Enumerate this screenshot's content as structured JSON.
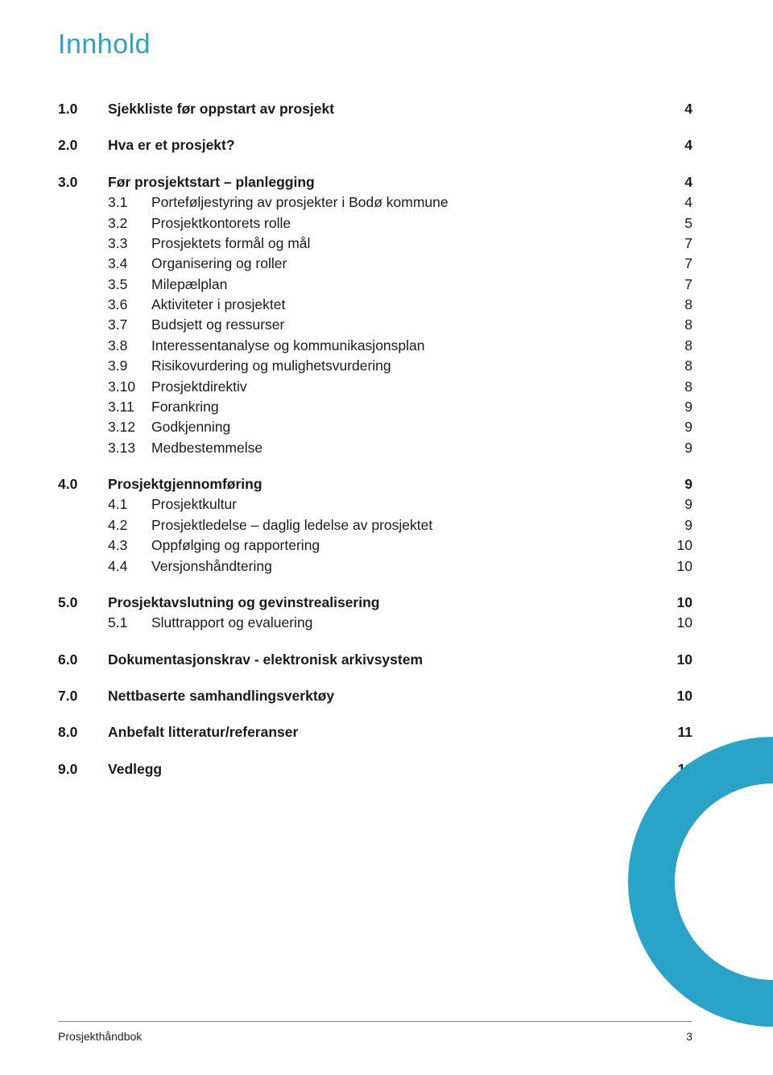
{
  "colors": {
    "title": "#2aa3c8",
    "text": "#1a1a1a",
    "rule": "#8a8a8a",
    "arc": "#2aa3c8",
    "background": "#ffffff"
  },
  "typography": {
    "title_fontsize": 34,
    "body_fontsize": 17.5,
    "footer_fontsize": 14,
    "body_lineheight": 1.45
  },
  "title": "Innhold",
  "sections": [
    {
      "num": "1.0",
      "label": "Sjekkliste før oppstart av prosjekt",
      "page": "4",
      "bold": true,
      "items": []
    },
    {
      "num": "2.0",
      "label": "Hva er et prosjekt?",
      "page": "4",
      "bold": true,
      "items": []
    },
    {
      "num": "3.0",
      "label": "Før prosjektstart – planlegging",
      "page": "4",
      "bold": true,
      "items": [
        {
          "num": "3.1",
          "label": "Porteføljestyring av prosjekter i Bodø kommune",
          "page": "4"
        },
        {
          "num": "3.2",
          "label": "Prosjektkontorets rolle",
          "page": "5"
        },
        {
          "num": "3.3",
          "label": "Prosjektets formål og mål",
          "page": "7"
        },
        {
          "num": "3.4",
          "label": "Organisering og roller",
          "page": "7"
        },
        {
          "num": "3.5",
          "label": "Milepælplan",
          "page": "7"
        },
        {
          "num": "3.6",
          "label": "Aktiviteter i prosjektet",
          "page": "8"
        },
        {
          "num": "3.7",
          "label": "Budsjett og ressurser",
          "page": "8"
        },
        {
          "num": "3.8",
          "label": "Interessentanalyse og kommunikasjonsplan",
          "page": "8"
        },
        {
          "num": "3.9",
          "label": "Risikovurdering og mulighetsvurdering",
          "page": "8"
        },
        {
          "num": "3.10",
          "label": "Prosjektdirektiv",
          "page": "8"
        },
        {
          "num": "3.11",
          "label": "Forankring",
          "page": "9"
        },
        {
          "num": "3.12",
          "label": "Godkjenning",
          "page": "9"
        },
        {
          "num": "3.13",
          "label": "Medbestemmelse",
          "page": "9"
        }
      ]
    },
    {
      "num": "4.0",
      "label": "Prosjektgjennomføring",
      "page": "9",
      "bold": true,
      "items": [
        {
          "num": "4.1",
          "label": "Prosjektkultur",
          "page": "9"
        },
        {
          "num": "4.2",
          "label": "Prosjektledelse – daglig ledelse av prosjektet",
          "page": "9"
        },
        {
          "num": "4.3",
          "label": "Oppfølging og rapportering",
          "page": "10"
        },
        {
          "num": "4.4",
          "label": "Versjonshåndtering",
          "page": "10"
        }
      ]
    },
    {
      "num": "5.0",
      "label": "Prosjektavslutning og gevinstrealisering",
      "page": "10",
      "bold": true,
      "items": [
        {
          "num": "5.1",
          "label": "Sluttrapport og evaluering",
          "page": "10"
        }
      ]
    },
    {
      "num": "6.0",
      "label": "Dokumentasjonskrav - elektronisk arkivsystem",
      "page": "10",
      "bold": true,
      "items": []
    },
    {
      "num": "7.0",
      "label": "Nettbaserte samhandlingsverktøy",
      "page": "10",
      "bold": true,
      "items": []
    },
    {
      "num": "8.0",
      "label": "Anbefalt litteratur/referanser",
      "page": "11",
      "bold": true,
      "items": []
    },
    {
      "num": "9.0",
      "label": "Vedlegg",
      "page": "11",
      "bold": true,
      "items": []
    }
  ],
  "footer": {
    "doc_title": "Prosjekthåndbok",
    "page_number": "3"
  }
}
